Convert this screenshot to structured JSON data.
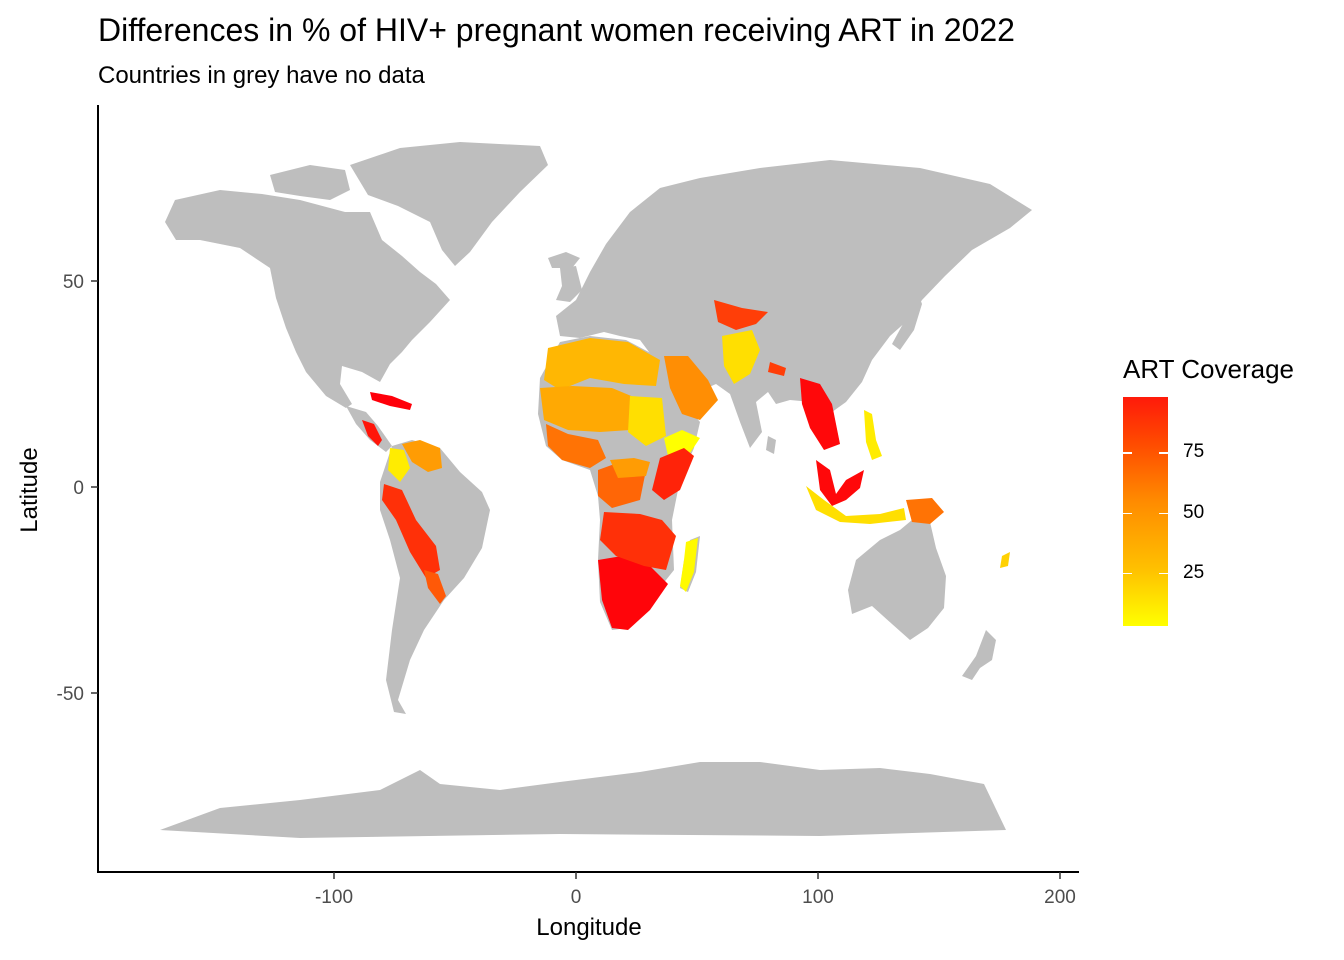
{
  "title": "Differences in % of HIV+ pregnant women receiving ART in 2022",
  "subtitle": "Countries in grey have no data",
  "chart_data": {
    "type": "choropleth map",
    "xlabel": "Longitude",
    "ylabel": "Latitude",
    "x_ticks": [
      -100,
      0,
      100,
      200
    ],
    "y_ticks": [
      -50,
      0,
      50
    ],
    "xlim": [
      -198,
      210
    ],
    "ylim": [
      -93,
      92
    ],
    "legend": {
      "title": "ART Coverage",
      "ticks": [
        25,
        50,
        75
      ],
      "range": [
        3,
        98
      ],
      "colors": [
        "#ffff00",
        "#ff0000"
      ],
      "placement": "right"
    },
    "no_data_color": "#bebebe",
    "regions": [
      {
        "name": "Caribbean",
        "value": 98
      },
      {
        "name": "Central America",
        "value": 90
      },
      {
        "name": "Venezuela/Guyana",
        "value": 40
      },
      {
        "name": "Colombia",
        "value": 10
      },
      {
        "name": "Peru/Bolivia",
        "value": 80
      },
      {
        "name": "Paraguay/N. Argentina",
        "value": 65
      },
      {
        "name": "North Africa",
        "value": 30
      },
      {
        "name": "Sahel",
        "value": 35
      },
      {
        "name": "West Africa coast",
        "value": 55
      },
      {
        "name": "Sudan",
        "value": 15
      },
      {
        "name": "Ethiopia",
        "value": 3
      },
      {
        "name": "Horn/Kenya/Uganda",
        "value": 85
      },
      {
        "name": "Central Africa",
        "value": 60
      },
      {
        "name": "DR Congo area",
        "value": 40
      },
      {
        "name": "Southern Africa",
        "value": 96
      },
      {
        "name": "Angola/Zambia/Mozambique",
        "value": 80
      },
      {
        "name": "Madagascar",
        "value": 5
      },
      {
        "name": "Arabian Peninsula",
        "value": 45
      },
      {
        "name": "Afghanistan/Pakistan",
        "value": 15
      },
      {
        "name": "Central Asia",
        "value": 75
      },
      {
        "name": "Nepal",
        "value": 75
      },
      {
        "name": "Myanmar/Thailand",
        "value": 95
      },
      {
        "name": "Malaysia/Borneo",
        "value": 95
      },
      {
        "name": "Indonesia",
        "value": 15
      },
      {
        "name": "Papua New Guinea",
        "value": 55
      },
      {
        "name": "Philippines",
        "value": 10
      },
      {
        "name": "Pacific islands",
        "value": 20
      }
    ]
  }
}
